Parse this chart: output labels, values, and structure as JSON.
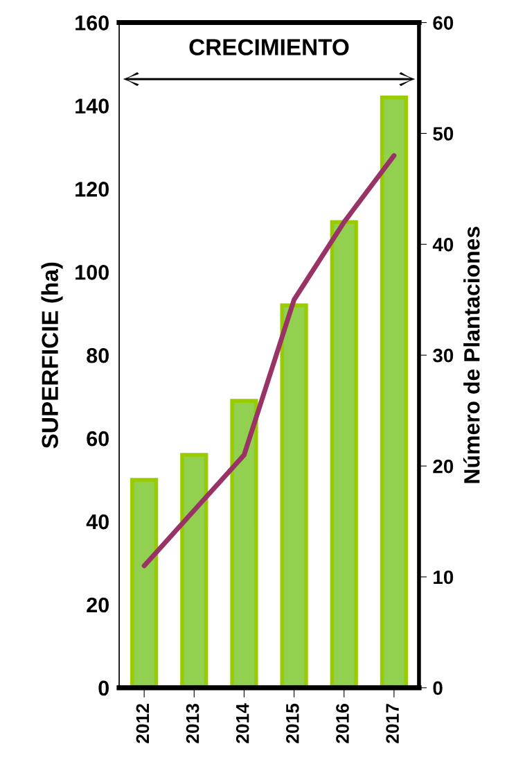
{
  "chart_data": {
    "type": "bar",
    "categories": [
      "2012",
      "2013",
      "2014",
      "2015",
      "2016",
      "2017"
    ],
    "ylabel": "SUPERFICIE (ha)",
    "y2label": "Número de Plantaciones",
    "annotations": [
      "CRECIMIENTO"
    ],
    "series": [
      {
        "color": "#92d050",
        "values": [
          50,
          56,
          69,
          92,
          112,
          142
        ]
      },
      {
        "type": "line",
        "axis": "y2",
        "color": "#993366",
        "values": [
          11,
          16,
          21,
          35,
          42,
          48
        ]
      }
    ],
    "ylim": [
      0,
      160
    ],
    "yticks": [
      0,
      20,
      40,
      60,
      80,
      100,
      120,
      140,
      160
    ],
    "y2lim": [
      0,
      60
    ],
    "y2ticks": [
      0,
      10,
      20,
      30,
      40,
      50,
      60
    ],
    "grid": false,
    "legend": false,
    "marker": "none",
    "line_style": "solid"
  }
}
